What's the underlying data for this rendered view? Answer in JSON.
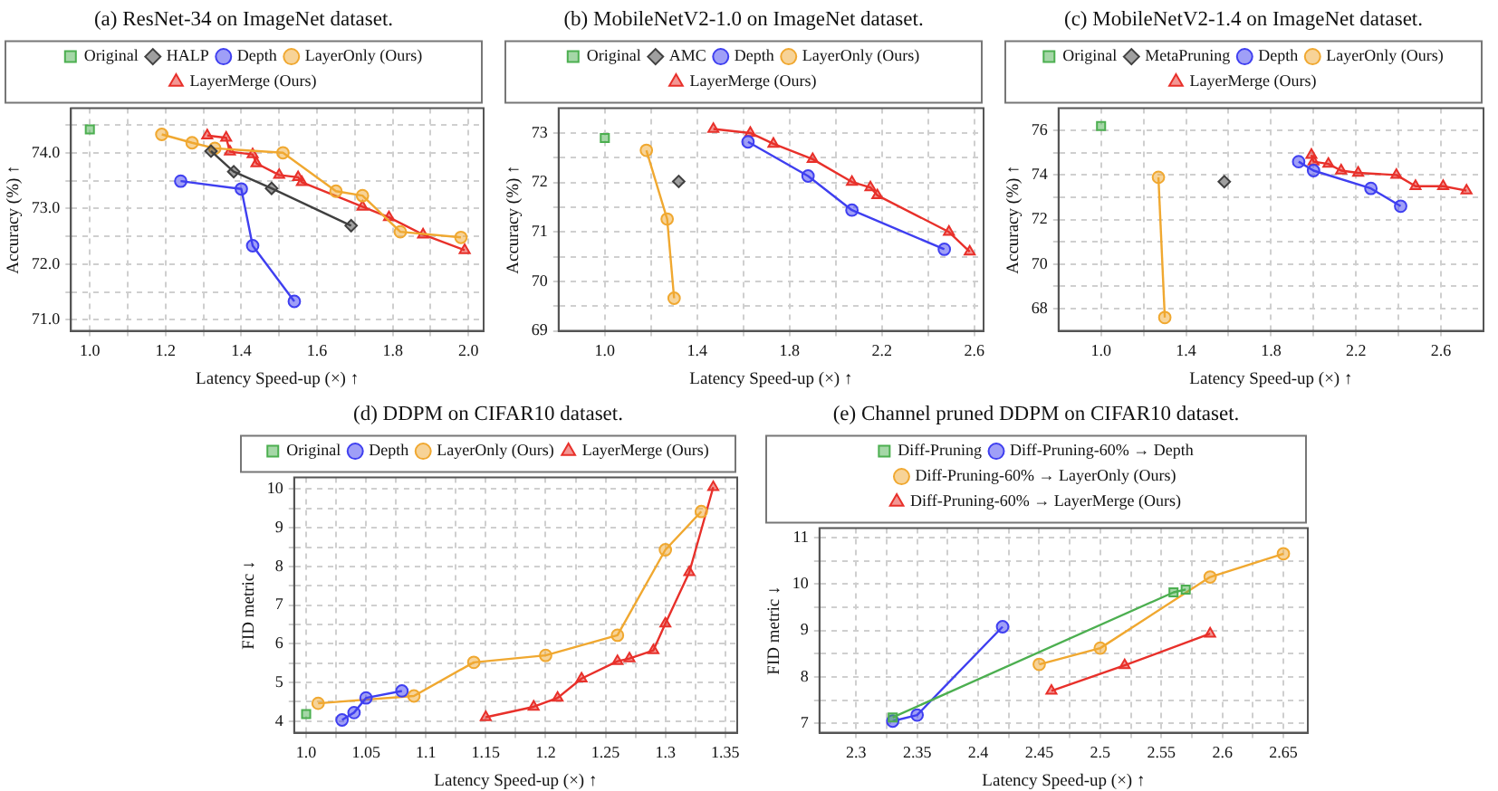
{
  "chart_data": [
    {
      "type": "line",
      "title": "(a) ResNet-34 on ImageNet dataset.",
      "xlabel": "Latency Speed-up (×) ↑",
      "ylabel": "Accuracy (%) ↑",
      "xlim": [
        0.95,
        2.04
      ],
      "ylim": [
        70.8,
        74.8
      ],
      "grid": true,
      "legend": "top",
      "xticks": [
        {
          "value": 1,
          "label": "1.0"
        },
        {
          "value": 1.1,
          "label": null
        },
        {
          "value": 1.2,
          "label": "1.2"
        },
        {
          "value": 1.3,
          "label": null
        },
        {
          "value": 1.4,
          "label": "1.4"
        },
        {
          "value": 1.5,
          "label": null
        },
        {
          "value": 1.6,
          "label": "1.6"
        },
        {
          "value": 1.7,
          "label": null
        },
        {
          "value": 1.8,
          "label": "1.8"
        },
        {
          "value": 1.9,
          "label": null
        },
        {
          "value": 2,
          "label": "2.0"
        }
      ],
      "yticks": [
        {
          "value": 71,
          "label": "71.0"
        },
        {
          "value": 71.5,
          "label": null
        },
        {
          "value": 72,
          "label": "72.0"
        },
        {
          "value": 72.5,
          "label": null
        },
        {
          "value": 73,
          "label": "73.0"
        },
        {
          "value": 73.5,
          "label": null
        },
        {
          "value": 74,
          "label": "74.0"
        },
        {
          "value": 74.5,
          "label": null
        }
      ],
      "series": [
        {
          "name": "Original",
          "color": "#4caf50",
          "type": "scatter",
          "marker": "square",
          "x": [
            1.0
          ],
          "values": [
            74.42
          ]
        },
        {
          "name": "HALP",
          "color": "#404040",
          "type": "line",
          "marker": "diamond",
          "x": [
            1.32,
            1.38,
            1.48,
            1.69
          ],
          "values": [
            74.03,
            73.66,
            73.36,
            72.69
          ]
        },
        {
          "name": "Depth",
          "color": "#3f3ff0",
          "type": "line",
          "marker": "circle",
          "x": [
            1.24,
            1.4,
            1.43,
            1.54
          ],
          "values": [
            73.49,
            73.35,
            72.33,
            71.33
          ]
        },
        {
          "name": "LayerOnly (Ours)",
          "color": "#f0a830",
          "type": "line",
          "marker": "circle",
          "x": [
            1.19,
            1.27,
            1.33,
            1.51,
            1.65,
            1.72,
            1.82,
            1.98
          ],
          "values": [
            74.33,
            74.18,
            74.08,
            74.0,
            73.31,
            73.23,
            72.58,
            72.48
          ]
        },
        {
          "name": "LayerMerge (Ours)",
          "color": "#e8302a",
          "type": "line",
          "marker": "triangle",
          "x": [
            1.31,
            1.36,
            1.37,
            1.43,
            1.44,
            1.5,
            1.55,
            1.56,
            1.72,
            1.79,
            1.88,
            1.99
          ],
          "values": [
            74.31,
            74.27,
            74.02,
            73.97,
            73.81,
            73.6,
            73.56,
            73.47,
            73.03,
            72.84,
            72.53,
            72.25
          ]
        }
      ]
    },
    {
      "type": "line",
      "title": "(b) MobileNetV2-1.0 on ImageNet dataset.",
      "xlabel": "Latency Speed-up (×) ↑",
      "ylabel": "Accuracy (%) ↑",
      "xlim": [
        0.8,
        2.64
      ],
      "ylim": [
        69,
        73.5
      ],
      "grid": true,
      "legend": "top",
      "xticks": [
        {
          "value": 1,
          "label": "1.0"
        },
        {
          "value": 1.2,
          "label": null
        },
        {
          "value": 1.4,
          "label": "1.4"
        },
        {
          "value": 1.6,
          "label": null
        },
        {
          "value": 1.8,
          "label": "1.8"
        },
        {
          "value": 2.0,
          "label": null
        },
        {
          "value": 2.2,
          "label": "2.2"
        },
        {
          "value": 2.4,
          "label": null
        },
        {
          "value": 2.6,
          "label": "2.6"
        }
      ],
      "yticks": [
        69,
        {
          "value": 69.5,
          "label": null
        },
        70,
        {
          "value": 70.5,
          "label": null
        },
        71,
        {
          "value": 71.5,
          "label": null
        },
        72,
        {
          "value": 72.5,
          "label": null
        },
        73
      ],
      "series": [
        {
          "name": "Original",
          "color": "#4caf50",
          "type": "scatter",
          "marker": "square",
          "x": [
            1.0
          ],
          "values": [
            72.9
          ]
        },
        {
          "name": "AMC",
          "color": "#404040",
          "type": "scatter",
          "marker": "diamond",
          "x": [
            1.32
          ],
          "values": [
            72.02
          ]
        },
        {
          "name": "Depth",
          "color": "#3f3ff0",
          "type": "line",
          "marker": "circle",
          "x": [
            1.62,
            1.88,
            2.07,
            2.47
          ],
          "values": [
            72.82,
            72.13,
            71.44,
            70.65
          ]
        },
        {
          "name": "LayerOnly (Ours)",
          "color": "#f0a830",
          "type": "line",
          "marker": "circle",
          "x": [
            1.18,
            1.27,
            1.3
          ],
          "values": [
            72.65,
            71.26,
            69.66
          ]
        },
        {
          "name": "LayerMerge (Ours)",
          "color": "#e8302a",
          "type": "line",
          "marker": "triangle",
          "x": [
            1.47,
            1.63,
            1.73,
            1.9,
            2.07,
            2.15,
            2.18,
            2.49,
            2.58
          ],
          "values": [
            73.08,
            73.0,
            72.78,
            72.47,
            72.01,
            71.9,
            71.74,
            71.0,
            70.6
          ]
        }
      ]
    },
    {
      "type": "line",
      "title": "(c) MobileNetV2-1.4 on ImageNet dataset.",
      "xlabel": "Latency Speed-up (×) ↑",
      "ylabel": "Accuracy (%) ↑",
      "xlim": [
        0.8,
        2.8
      ],
      "ylim": [
        67,
        77
      ],
      "grid": true,
      "legend": "top",
      "xticks": [
        {
          "value": 1,
          "label": "1.0"
        },
        {
          "value": 1.2,
          "label": null
        },
        {
          "value": 1.4,
          "label": "1.4"
        },
        {
          "value": 1.6,
          "label": null
        },
        {
          "value": 1.8,
          "label": "1.8"
        },
        {
          "value": 2.0,
          "label": null
        },
        {
          "value": 2.2,
          "label": "2.2"
        },
        {
          "value": 2.4,
          "label": null
        },
        {
          "value": 2.6,
          "label": "2.6"
        }
      ],
      "yticks": [
        68,
        {
          "value": 69,
          "label": null
        },
        70,
        {
          "value": 71,
          "label": null
        },
        72,
        {
          "value": 73,
          "label": null
        },
        74,
        {
          "value": 75,
          "label": null
        },
        76
      ],
      "series": [
        {
          "name": "Original",
          "color": "#4caf50",
          "type": "scatter",
          "marker": "square",
          "x": [
            1.0
          ],
          "values": [
            76.2
          ]
        },
        {
          "name": "MetaPruning",
          "color": "#404040",
          "type": "scatter",
          "marker": "diamond",
          "x": [
            1.58
          ],
          "values": [
            73.7
          ]
        },
        {
          "name": "Depth",
          "color": "#3f3ff0",
          "type": "line",
          "marker": "circle",
          "x": [
            1.93,
            2.0,
            2.27,
            2.41
          ],
          "values": [
            74.6,
            74.2,
            73.4,
            72.6
          ]
        },
        {
          "name": "LayerOnly (Ours)",
          "color": "#f0a830",
          "type": "line",
          "marker": "circle",
          "x": [
            1.27,
            1.3
          ],
          "values": [
            73.9,
            67.6
          ]
        },
        {
          "name": "LayerMerge (Ours)",
          "color": "#e8302a",
          "type": "line",
          "marker": "triangle",
          "x": [
            1.99,
            2.0,
            2.07,
            2.13,
            2.21,
            2.39,
            2.48,
            2.61,
            2.72
          ],
          "values": [
            74.9,
            74.6,
            74.5,
            74.2,
            74.1,
            74.0,
            73.5,
            73.5,
            73.3
          ]
        }
      ]
    },
    {
      "type": "line",
      "title": "(d) DDPM on CIFAR10 dataset.",
      "xlabel": "Latency Speed-up (×) ↑",
      "ylabel": "FID metric ↓",
      "xlim": [
        0.99,
        1.36
      ],
      "ylim": [
        3.7,
        10.3
      ],
      "grid": true,
      "legend": "top",
      "xticks": [
        {
          "value": 1,
          "label": "1.0"
        },
        {
          "value": 1.025,
          "label": null
        },
        1.05,
        {
          "value": 1.075,
          "label": null
        },
        1.1,
        {
          "value": 1.125,
          "label": null
        },
        1.15,
        {
          "value": 1.175,
          "label": null
        },
        1.2,
        {
          "value": 1.225,
          "label": null
        },
        1.25,
        {
          "value": 1.275,
          "label": null
        },
        1.3,
        {
          "value": 1.325,
          "label": null
        },
        1.35
      ],
      "yticks": [
        4,
        {
          "value": 4.5,
          "label": null
        },
        5,
        {
          "value": 5.5,
          "label": null
        },
        6,
        {
          "value": 6.5,
          "label": null
        },
        7,
        {
          "value": 7.5,
          "label": null
        },
        8,
        {
          "value": 8.5,
          "label": null
        },
        9,
        {
          "value": 9.5,
          "label": null
        },
        10
      ],
      "series": [
        {
          "name": "Original",
          "color": "#4caf50",
          "type": "scatter",
          "marker": "square",
          "x": [
            1.0
          ],
          "values": [
            4.18
          ]
        },
        {
          "name": "Depth",
          "color": "#3f3ff0",
          "type": "line",
          "marker": "circle",
          "x": [
            1.03,
            1.04,
            1.05,
            1.08
          ],
          "values": [
            4.03,
            4.22,
            4.6,
            4.78
          ]
        },
        {
          "name": "LayerOnly (Ours)",
          "color": "#f0a830",
          "type": "line",
          "marker": "circle",
          "x": [
            1.01,
            1.09,
            1.14,
            1.2,
            1.26,
            1.3,
            1.33
          ],
          "values": [
            4.46,
            4.65,
            5.52,
            5.7,
            6.22,
            8.43,
            9.42
          ]
        },
        {
          "name": "LayerMerge (Ours)",
          "color": "#e8302a",
          "type": "line",
          "marker": "triangle",
          "x": [
            1.15,
            1.19,
            1.21,
            1.23,
            1.26,
            1.27,
            1.29,
            1.3,
            1.32,
            1.34
          ],
          "values": [
            4.1,
            4.37,
            4.6,
            5.1,
            5.55,
            5.62,
            5.83,
            6.52,
            7.85,
            10.05
          ]
        }
      ]
    },
    {
      "type": "line",
      "title": "(e) Channel pruned DDPM on CIFAR10 dataset.",
      "xlabel": "Latency Speed-up (×) ↑",
      "ylabel": "FID metric ↓",
      "xlim": [
        2.27,
        2.67
      ],
      "ylim": [
        6.8,
        11.2
      ],
      "grid": true,
      "legend": "top",
      "xticks": [
        2.3,
        {
          "value": 2.325,
          "label": null
        },
        2.35,
        {
          "value": 2.375,
          "label": null
        },
        2.4,
        {
          "value": 2.425,
          "label": null
        },
        2.45,
        {
          "value": 2.475,
          "label": null
        },
        2.5,
        {
          "value": 2.525,
          "label": null
        },
        2.55,
        {
          "value": 2.575,
          "label": null
        },
        2.6,
        {
          "value": 2.625,
          "label": null
        },
        2.65
      ],
      "yticks": [
        7,
        {
          "value": 7.5,
          "label": null
        },
        8,
        {
          "value": 8.5,
          "label": null
        },
        9,
        {
          "value": 9.5,
          "label": null
        },
        10,
        {
          "value": 10.5,
          "label": null
        },
        11
      ],
      "series": [
        {
          "name": "Diff-Pruning",
          "color": "#4caf50",
          "type": "line",
          "marker": "square",
          "x": [
            2.33,
            2.56,
            2.57
          ],
          "values": [
            7.13,
            9.82,
            9.88
          ]
        },
        {
          "name": "Diff-Pruning-60% → Depth",
          "color": "#3f3ff0",
          "type": "line",
          "marker": "circle",
          "x": [
            2.33,
            2.35,
            2.42
          ],
          "values": [
            7.05,
            7.18,
            9.08
          ]
        },
        {
          "name": "Diff-Pruning-60% → LayerOnly (Ours)",
          "color": "#f0a830",
          "type": "line",
          "marker": "circle",
          "x": [
            2.45,
            2.5,
            2.59,
            2.65
          ],
          "values": [
            8.27,
            8.62,
            10.15,
            10.65
          ]
        },
        {
          "name": "Diff-Pruning-60% → LayerMerge (Ours)",
          "color": "#e8302a",
          "type": "line",
          "marker": "triangle",
          "x": [
            2.46,
            2.52,
            2.59
          ],
          "values": [
            7.7,
            8.25,
            8.93
          ]
        }
      ]
    }
  ]
}
